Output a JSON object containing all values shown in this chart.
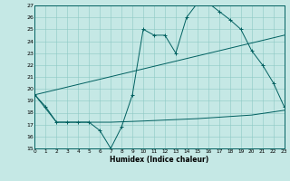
{
  "xlabel": "Humidex (Indice chaleur)",
  "xlim": [
    0,
    23
  ],
  "ylim": [
    15,
    27
  ],
  "xticks": [
    0,
    1,
    2,
    3,
    4,
    5,
    6,
    7,
    8,
    9,
    10,
    11,
    12,
    13,
    14,
    15,
    16,
    17,
    18,
    19,
    20,
    21,
    22,
    23
  ],
  "yticks": [
    15,
    16,
    17,
    18,
    19,
    20,
    21,
    22,
    23,
    24,
    25,
    26,
    27
  ],
  "bg_color": "#c5e8e5",
  "line_color": "#006060",
  "line1_x": [
    0,
    1,
    2,
    3,
    4,
    5,
    6,
    7,
    8,
    9,
    10,
    11,
    12,
    13,
    14,
    15,
    16,
    17,
    18,
    19,
    20,
    21,
    22,
    23
  ],
  "line1_y": [
    19.5,
    18.5,
    17.2,
    17.2,
    17.2,
    17.2,
    16.5,
    15.0,
    16.8,
    19.5,
    25.0,
    24.5,
    24.5,
    23.0,
    26.0,
    27.2,
    27.2,
    26.5,
    25.8,
    25.0,
    23.2,
    22.0,
    20.5,
    18.5
  ],
  "line2_x": [
    0,
    2,
    3,
    4,
    5,
    6,
    7,
    10,
    15,
    20,
    23
  ],
  "line2_y": [
    19.5,
    17.2,
    17.2,
    17.2,
    17.2,
    17.2,
    17.2,
    17.3,
    17.5,
    17.8,
    18.2
  ],
  "line3_x": [
    0,
    23
  ],
  "line3_y": [
    19.5,
    24.5
  ]
}
